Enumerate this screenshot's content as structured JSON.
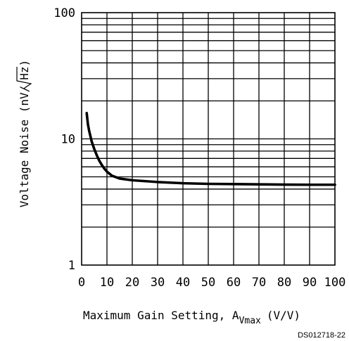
{
  "chart_data": {
    "type": "line",
    "xlabel_main": "Maximum Gain Setting, A",
    "xlabel_sub": "Vmax",
    "xlabel_unit": "(V/V)",
    "ylabel_main": "Voltage Noise (nV/",
    "ylabel_radical": "Hz",
    "ylabel_close": ")",
    "figure_code": "DS012718-22",
    "x_scale": "linear",
    "y_scale": "log",
    "xlim": [
      0,
      100
    ],
    "ylim": [
      1,
      100
    ],
    "grid": true,
    "x_ticks": [
      {
        "value": 0,
        "label": "0"
      },
      {
        "value": 10,
        "label": "10"
      },
      {
        "value": 20,
        "label": "20"
      },
      {
        "value": 30,
        "label": "30"
      },
      {
        "value": 40,
        "label": "40"
      },
      {
        "value": 50,
        "label": "50"
      },
      {
        "value": 60,
        "label": "60"
      },
      {
        "value": 70,
        "label": "70"
      },
      {
        "value": 80,
        "label": "80"
      },
      {
        "value": 90,
        "label": "90"
      },
      {
        "value": 100,
        "label": "100"
      }
    ],
    "y_ticks": [
      {
        "value": 1,
        "label": "1"
      },
      {
        "value": 10,
        "label": "10"
      },
      {
        "value": 100,
        "label": "100"
      }
    ],
    "series": [
      {
        "x": [
          2,
          2.5,
          3,
          4,
          5,
          6,
          7,
          8,
          9,
          10,
          12,
          15,
          20,
          30,
          40,
          50,
          60,
          70,
          80,
          90,
          100
        ],
        "y": [
          16,
          13,
          11.5,
          9.5,
          8.3,
          7.4,
          6.7,
          6.2,
          5.8,
          5.5,
          5.1,
          4.85,
          4.7,
          4.55,
          4.45,
          4.4,
          4.38,
          4.36,
          4.34,
          4.33,
          4.33
        ]
      }
    ]
  }
}
